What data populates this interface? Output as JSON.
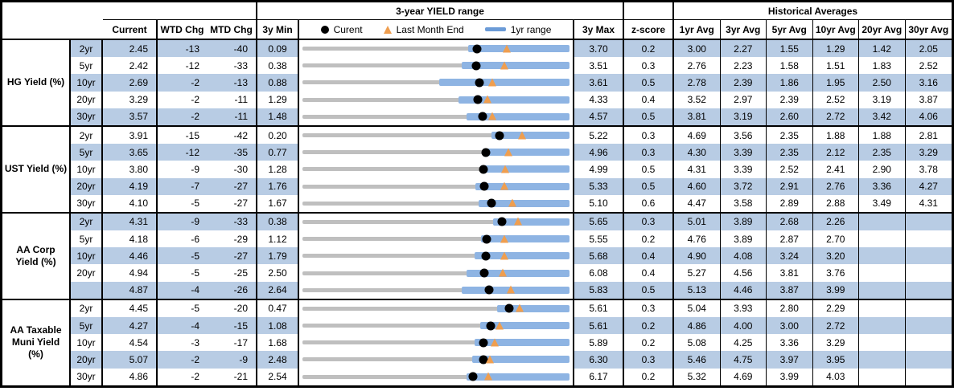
{
  "header": {
    "current": "Current",
    "wtd": "WTD Chg",
    "mtd": "MTD Chg",
    "min": "3y Min",
    "max": "3y Max",
    "z": "z-score",
    "avg_cols": [
      "1yr Avg",
      "3yr Avg",
      "5yr Avg",
      "10yr Avg",
      "20yr Avg",
      "30yr Avg"
    ]
  },
  "colors": {
    "stripe_blue": "#b8cce4",
    "bar_blue": "#8eb4e3",
    "bar_gray": "#bfbfbf",
    "triangle_orange": "#ef9e4f",
    "legend_dash_blue": "#6b9bd7",
    "dot_black": "#000000"
  },
  "chart_data": {
    "type": "table",
    "range_header": "3-year YIELD range",
    "hist_header": "Historical Averages",
    "legend": {
      "current_label": "Curent",
      "last_month_label": "Last Month End",
      "range_label": "1yr range"
    },
    "groups": [
      {
        "label": "HG Yield (%)",
        "rows": [
          {
            "tenor": "2yr",
            "current": "2.45",
            "wtd": "-13",
            "mtd": "-40",
            "min": "0.09",
            "max": "3.70",
            "z": "0.2",
            "avgs": [
              "3.00",
              "2.27",
              "1.55",
              "1.29",
              "1.42",
              "2.05"
            ],
            "bar": {
              "blue_start": 0.62,
              "blue_end": 1.0,
              "dot": 0.654,
              "tri": 0.764
            }
          },
          {
            "tenor": "5yr",
            "current": "2.42",
            "wtd": "-12",
            "mtd": "-33",
            "min": "0.38",
            "max": "3.51",
            "z": "0.3",
            "avgs": [
              "2.76",
              "2.23",
              "1.58",
              "1.51",
              "1.83",
              "2.52"
            ],
            "bar": {
              "blue_start": 0.597,
              "blue_end": 1.0,
              "dot": 0.652,
              "tri": 0.757
            }
          },
          {
            "tenor": "10yr",
            "current": "2.69",
            "wtd": "-2",
            "mtd": "-13",
            "min": "0.88",
            "max": "3.61",
            "z": "0.5",
            "avgs": [
              "2.78",
              "2.39",
              "1.86",
              "1.95",
              "2.50",
              "3.16"
            ],
            "bar": {
              "blue_start": 0.513,
              "blue_end": 1.0,
              "dot": 0.663,
              "tri": 0.711
            }
          },
          {
            "tenor": "20yr",
            "current": "3.29",
            "wtd": "-2",
            "mtd": "-11",
            "min": "1.29",
            "max": "4.33",
            "z": "0.4",
            "avgs": [
              "3.52",
              "2.97",
              "2.39",
              "2.52",
              "3.19",
              "3.87"
            ],
            "bar": {
              "blue_start": 0.585,
              "blue_end": 1.0,
              "dot": 0.658,
              "tri": 0.694
            }
          },
          {
            "tenor": "30yr",
            "current": "3.57",
            "wtd": "-2",
            "mtd": "-11",
            "min": "1.48",
            "max": "4.57",
            "z": "0.5",
            "avgs": [
              "3.81",
              "3.19",
              "2.60",
              "2.72",
              "3.42",
              "4.06"
            ],
            "bar": {
              "blue_start": 0.614,
              "blue_end": 1.0,
              "dot": 0.676,
              "tri": 0.712
            }
          }
        ]
      },
      {
        "label": "UST Yield (%)",
        "rows": [
          {
            "tenor": "2yr",
            "current": "3.91",
            "wtd": "-15",
            "mtd": "-42",
            "min": "0.20",
            "max": "5.22",
            "z": "0.3",
            "avgs": [
              "4.69",
              "3.56",
              "2.35",
              "1.88",
              "1.88",
              "2.81"
            ],
            "bar": {
              "blue_start": 0.709,
              "blue_end": 1.0,
              "dot": 0.739,
              "tri": 0.823
            }
          },
          {
            "tenor": "5yr",
            "current": "3.65",
            "wtd": "-12",
            "mtd": "-35",
            "min": "0.77",
            "max": "4.96",
            "z": "0.3",
            "avgs": [
              "4.30",
              "3.39",
              "2.35",
              "2.12",
              "2.35",
              "3.29"
            ],
            "bar": {
              "blue_start": 0.674,
              "blue_end": 1.0,
              "dot": 0.687,
              "tri": 0.771
            }
          },
          {
            "tenor": "10yr",
            "current": "3.80",
            "wtd": "-9",
            "mtd": "-30",
            "min": "1.28",
            "max": "4.99",
            "z": "0.5",
            "avgs": [
              "4.31",
              "3.39",
              "2.52",
              "2.41",
              "2.90",
              "3.78"
            ],
            "bar": {
              "blue_start": 0.665,
              "blue_end": 1.0,
              "dot": 0.679,
              "tri": 0.76
            }
          },
          {
            "tenor": "20yr",
            "current": "4.19",
            "wtd": "-7",
            "mtd": "-27",
            "min": "1.76",
            "max": "5.33",
            "z": "0.5",
            "avgs": [
              "4.60",
              "3.72",
              "2.91",
              "2.76",
              "3.36",
              "4.27"
            ],
            "bar": {
              "blue_start": 0.647,
              "blue_end": 1.0,
              "dot": 0.681,
              "tri": 0.756
            }
          },
          {
            "tenor": "30yr",
            "current": "4.10",
            "wtd": "-5",
            "mtd": "-27",
            "min": "1.67",
            "max": "5.10",
            "z": "0.6",
            "avgs": [
              "4.47",
              "3.58",
              "2.89",
              "2.88",
              "3.49",
              "4.31"
            ],
            "bar": {
              "blue_start": 0.659,
              "blue_end": 1.0,
              "dot": 0.708,
              "tri": 0.787
            }
          }
        ]
      },
      {
        "label": "AA Corp Yield (%)",
        "rows": [
          {
            "tenor": "2yr",
            "current": "4.31",
            "wtd": "-9",
            "mtd": "-33",
            "min": "0.38",
            "max": "5.65",
            "z": "0.3",
            "avgs": [
              "5.01",
              "3.89",
              "2.68",
              "2.26",
              "",
              ""
            ],
            "bar": {
              "blue_start": 0.715,
              "blue_end": 1.0,
              "dot": 0.746,
              "tri": 0.808
            }
          },
          {
            "tenor": "5yr",
            "current": "4.18",
            "wtd": "-6",
            "mtd": "-29",
            "min": "1.12",
            "max": "5.55",
            "z": "0.2",
            "avgs": [
              "4.76",
              "3.89",
              "2.87",
              "2.70",
              "",
              ""
            ],
            "bar": {
              "blue_start": 0.67,
              "blue_end": 1.0,
              "dot": 0.691,
              "tri": 0.756
            }
          },
          {
            "tenor": "10yr",
            "current": "4.46",
            "wtd": "-5",
            "mtd": "-27",
            "min": "1.79",
            "max": "5.68",
            "z": "0.4",
            "avgs": [
              "4.90",
              "4.08",
              "3.24",
              "3.20",
              "",
              ""
            ],
            "bar": {
              "blue_start": 0.644,
              "blue_end": 1.0,
              "dot": 0.686,
              "tri": 0.756
            }
          },
          {
            "tenor": "20yr",
            "current": "4.94",
            "wtd": "-5",
            "mtd": "-25",
            "min": "2.50",
            "max": "6.08",
            "z": "0.4",
            "avgs": [
              "5.27",
              "4.56",
              "3.81",
              "3.76",
              "",
              ""
            ],
            "bar": {
              "blue_start": 0.614,
              "blue_end": 1.0,
              "dot": 0.682,
              "tri": 0.751
            }
          },
          {
            "tenor": "",
            "current": "4.87",
            "wtd": "-4",
            "mtd": "-26",
            "min": "2.64",
            "max": "5.83",
            "z": "0.5",
            "avgs": [
              "5.13",
              "4.46",
              "3.87",
              "3.99",
              "",
              ""
            ],
            "bar": {
              "blue_start": 0.597,
              "blue_end": 1.0,
              "dot": 0.699,
              "tri": 0.781
            }
          }
        ]
      },
      {
        "label": "AA Taxable Muni Yield (%)",
        "rows": [
          {
            "tenor": "2yr",
            "current": "4.45",
            "wtd": "-5",
            "mtd": "-20",
            "min": "0.47",
            "max": "5.61",
            "z": "0.3",
            "avgs": [
              "5.04",
              "3.93",
              "2.80",
              "2.29",
              "",
              ""
            ],
            "bar": {
              "blue_start": 0.73,
              "blue_end": 1.0,
              "dot": 0.774,
              "tri": 0.813
            }
          },
          {
            "tenor": "5yr",
            "current": "4.27",
            "wtd": "-4",
            "mtd": "-15",
            "min": "1.08",
            "max": "5.61",
            "z": "0.2",
            "avgs": [
              "4.86",
              "4.00",
              "3.00",
              "2.72",
              "",
              ""
            ],
            "bar": {
              "blue_start": 0.665,
              "blue_end": 1.0,
              "dot": 0.704,
              "tri": 0.737
            }
          },
          {
            "tenor": "10yr",
            "current": "4.54",
            "wtd": "-3",
            "mtd": "-17",
            "min": "1.68",
            "max": "5.89",
            "z": "0.2",
            "avgs": [
              "5.08",
              "4.25",
              "3.36",
              "3.29",
              "",
              ""
            ],
            "bar": {
              "blue_start": 0.644,
              "blue_end": 1.0,
              "dot": 0.679,
              "tri": 0.72
            }
          },
          {
            "tenor": "20yr",
            "current": "5.07",
            "wtd": "-2",
            "mtd": "-9",
            "min": "2.48",
            "max": "6.30",
            "z": "0.3",
            "avgs": [
              "5.46",
              "4.75",
              "3.97",
              "3.95",
              "",
              ""
            ],
            "bar": {
              "blue_start": 0.635,
              "blue_end": 1.0,
              "dot": 0.678,
              "tri": 0.702
            }
          },
          {
            "tenor": "30yr",
            "current": "4.86",
            "wtd": "-2",
            "mtd": "-21",
            "min": "2.54",
            "max": "6.17",
            "z": "0.2",
            "avgs": [
              "5.32",
              "4.69",
              "3.99",
              "4.03",
              "",
              ""
            ],
            "bar": {
              "blue_start": 0.614,
              "blue_end": 1.0,
              "dot": 0.639,
              "tri": 0.697
            }
          }
        ]
      }
    ]
  }
}
